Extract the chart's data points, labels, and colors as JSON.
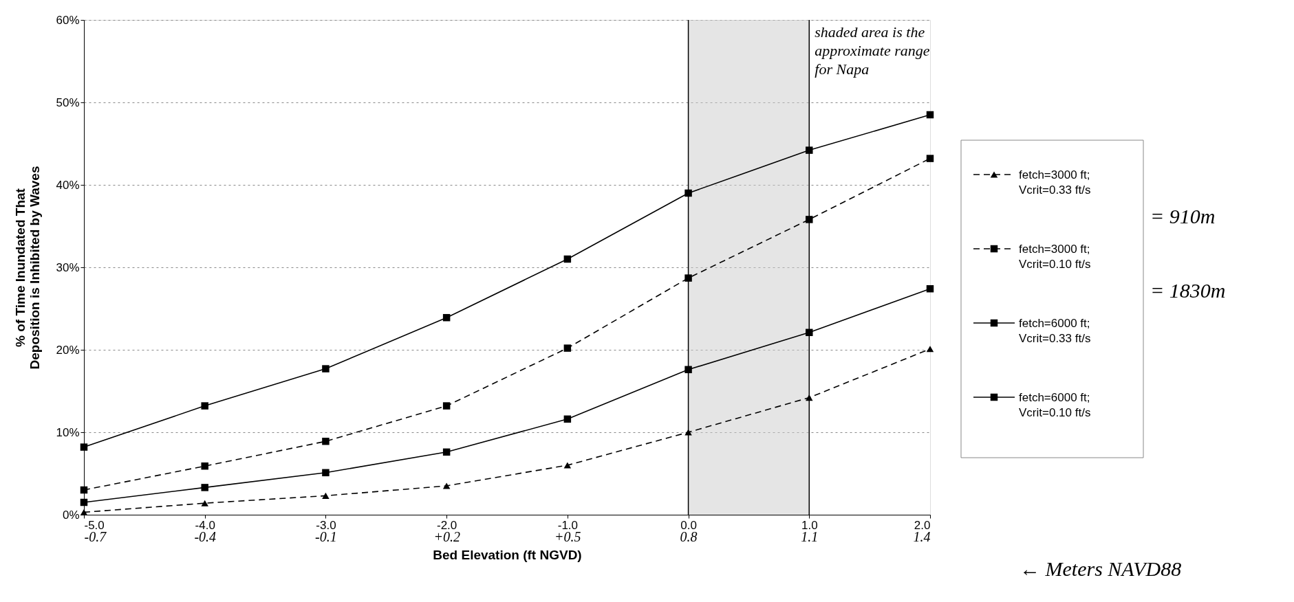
{
  "chart_data": {
    "type": "line",
    "ylabel": "% of Time Inundated That Deposition is Inhibited by Waves",
    "xlabel": "Bed Elevation (ft NGVD)",
    "x": [
      -5,
      -4,
      -3,
      -2,
      -1,
      0,
      1,
      2
    ],
    "xlim": [
      -5,
      2
    ],
    "xticks": [
      {
        "value": -5,
        "label": "-5.0"
      },
      {
        "value": -4,
        "label": "-4.0"
      },
      {
        "value": -3,
        "label": "-3.0"
      },
      {
        "value": -2,
        "label": "-2.0"
      },
      {
        "value": -1,
        "label": "-1.0"
      },
      {
        "value": 0,
        "label": "0.0"
      },
      {
        "value": 1,
        "label": "1.0"
      },
      {
        "value": 2,
        "label": "2.0"
      }
    ],
    "x2lim": [
      -0.7,
      1.4
    ],
    "x2ticks": [
      -0.7,
      -0.4,
      -0.1,
      {
        "value": 0.2,
        "label": "+0.2"
      },
      {
        "value": 0.5,
        "label": "+0.5"
      },
      0.8,
      1.1,
      1.4
    ],
    "ylim": [
      0,
      60
    ],
    "yticks": [
      {
        "value": 0,
        "label": "0%"
      },
      {
        "value": 10,
        "label": "10%"
      },
      {
        "value": 20,
        "label": "20%"
      },
      {
        "value": 30,
        "label": "30%"
      },
      {
        "value": 40,
        "label": "40%"
      },
      {
        "value": 50,
        "label": "50%"
      },
      {
        "value": 60,
        "label": "60%"
      }
    ],
    "series": [
      {
        "name": "fetch=3000 ft; Vcrit=0.33 ft/s",
        "color": "#000000",
        "marker": "triangle",
        "line_style": "dashed",
        "values": [
          0.3,
          1.4,
          2.3,
          3.5,
          6.0,
          10.0,
          14.2,
          20.1
        ]
      },
      {
        "name": "fetch=3000 ft; Vcrit=0.10 ft/s",
        "color": "#000000",
        "marker": "square",
        "line_style": "dashed",
        "values": [
          3.0,
          5.9,
          8.9,
          13.2,
          20.2,
          28.7,
          35.8,
          43.2
        ]
      },
      {
        "name": "fetch=6000 ft; Vcrit=0.33 ft/s",
        "color": "#000000",
        "marker": "square",
        "line_style": "solid",
        "values": [
          1.5,
          3.3,
          5.1,
          7.6,
          11.6,
          17.6,
          22.1,
          27.4
        ]
      },
      {
        "name": "fetch=6000 ft; Vcrit=0.10 ft/s",
        "color": "#000000",
        "marker": "square",
        "line_style": "solid",
        "values": [
          8.2,
          13.2,
          17.7,
          23.9,
          31.0,
          39.0,
          44.2,
          48.5
        ]
      }
    ],
    "bands": [
      {
        "axis": "x",
        "from": 0,
        "to": 1,
        "label": "shaded area is the approximate range for Napa",
        "color": "#cccccc"
      }
    ],
    "ref_lines": [
      {
        "axis": "x",
        "value": 0,
        "color": "#000000"
      },
      {
        "axis": "x",
        "value": 1,
        "color": "#000000"
      }
    ],
    "annotations": [
      "= 910m",
      "= 1830m",
      "← Meters NAVD88"
    ],
    "grid": "y",
    "legend": "right"
  }
}
